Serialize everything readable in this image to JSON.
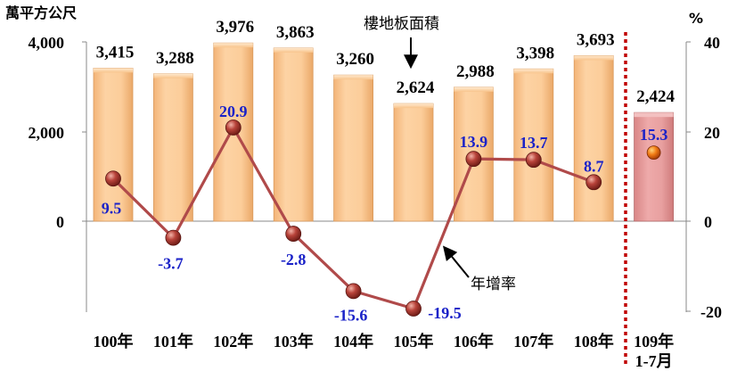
{
  "chart_data": {
    "type": "bar",
    "left_unit": "萬平方公尺",
    "right_unit": "%",
    "categories": [
      "100年",
      "101年",
      "102年",
      "103年",
      "104年",
      "105年",
      "106年",
      "107年",
      "108年",
      "109年"
    ],
    "last_category_sub": "1-7月",
    "series": [
      {
        "name": "樓地板面積",
        "type": "bar",
        "values": [
          3415,
          3288,
          3976,
          3863,
          3260,
          2624,
          2988,
          3398,
          3693,
          2424
        ],
        "labels": [
          "3,415",
          "3,288",
          "3,976",
          "3,863",
          "3,260",
          "2,624",
          "2,988",
          "3,398",
          "3,693",
          "2,424"
        ]
      },
      {
        "name": "年增率",
        "type": "line",
        "values": [
          9.5,
          -3.7,
          20.9,
          -2.8,
          -15.6,
          -19.5,
          13.9,
          13.7,
          8.7,
          15.3
        ],
        "labels": [
          "9.5",
          "-3.7",
          "20.9",
          "-2.8",
          "-15.6",
          "-19.5",
          "13.9",
          "13.7",
          "8.7",
          "15.3"
        ]
      }
    ],
    "left_axis": {
      "ylim": [
        0,
        4000
      ],
      "ticks": [
        "4,000",
        "2,000",
        "0"
      ]
    },
    "right_axis": {
      "ylim": [
        -20,
        40
      ],
      "ticks": [
        "40",
        "20",
        "0",
        "-20"
      ]
    },
    "colors": {
      "bar": "#fcc994",
      "bar_highlight": "#e79a9a",
      "line": "#b04a4a",
      "marker": "#b23b33",
      "marker_last": "#f07a14",
      "divider": "#c00000",
      "rate_label": "#1a22c8"
    }
  }
}
